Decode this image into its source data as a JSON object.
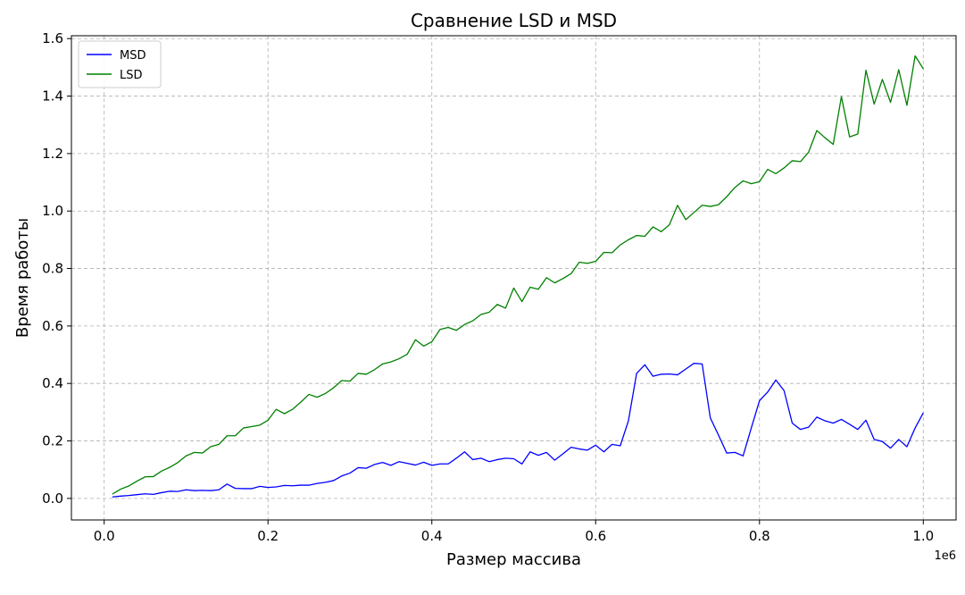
{
  "chart_data": {
    "type": "line",
    "title": "Сравнение LSD и MSD",
    "xlabel": "Размер массива",
    "ylabel": "Время работы",
    "x_offset_label": "1e6",
    "xlim": [
      -0.04,
      1.04
    ],
    "ylim": [
      -0.075,
      1.61
    ],
    "x_ticks": [
      0.0,
      0.2,
      0.4,
      0.6,
      0.8,
      1.0
    ],
    "x_tick_labels": [
      "0.0",
      "0.2",
      "0.4",
      "0.6",
      "0.8",
      "1.0"
    ],
    "y_ticks": [
      0.0,
      0.2,
      0.4,
      0.6,
      0.8,
      1.0,
      1.2,
      1.4,
      1.6
    ],
    "y_tick_labels": [
      "0.0",
      "0.2",
      "0.4",
      "0.6",
      "0.8",
      "1.0",
      "1.2",
      "1.4",
      "1.6"
    ],
    "grid": true,
    "legend_position": "top-left",
    "x": [
      0.01,
      0.02,
      0.03,
      0.04,
      0.05,
      0.06,
      0.07,
      0.08,
      0.09,
      0.1,
      0.11,
      0.12,
      0.13,
      0.14,
      0.15,
      0.16,
      0.17,
      0.18,
      0.19,
      0.2,
      0.21,
      0.22,
      0.23,
      0.24,
      0.25,
      0.26,
      0.27,
      0.28,
      0.29,
      0.3,
      0.31,
      0.32,
      0.33,
      0.34,
      0.35,
      0.36,
      0.37,
      0.38,
      0.39,
      0.4,
      0.41,
      0.42,
      0.43,
      0.44,
      0.45,
      0.46,
      0.47,
      0.48,
      0.49,
      0.5,
      0.51,
      0.52,
      0.53,
      0.54,
      0.55,
      0.56,
      0.57,
      0.58,
      0.59,
      0.6,
      0.61,
      0.62,
      0.63,
      0.64,
      0.65,
      0.66,
      0.67,
      0.68,
      0.69,
      0.7,
      0.71,
      0.72,
      0.73,
      0.74,
      0.75,
      0.76,
      0.77,
      0.78,
      0.79,
      0.8,
      0.81,
      0.82,
      0.83,
      0.84,
      0.85,
      0.86,
      0.87,
      0.88,
      0.89,
      0.9,
      0.91,
      0.92,
      0.93,
      0.94,
      0.95,
      0.96,
      0.97,
      0.98,
      0.99,
      1.0
    ],
    "series": [
      {
        "name": "MSD",
        "color": "#0000ff",
        "values": [
          0.005,
          0.008,
          0.01,
          0.013,
          0.016,
          0.014,
          0.02,
          0.025,
          0.024,
          0.03,
          0.027,
          0.028,
          0.027,
          0.03,
          0.05,
          0.035,
          0.034,
          0.034,
          0.042,
          0.038,
          0.04,
          0.045,
          0.044,
          0.046,
          0.046,
          0.052,
          0.056,
          0.062,
          0.078,
          0.088,
          0.107,
          0.105,
          0.118,
          0.125,
          0.115,
          0.128,
          0.122,
          0.116,
          0.126,
          0.115,
          0.12,
          0.12,
          0.14,
          0.162,
          0.135,
          0.14,
          0.128,
          0.135,
          0.14,
          0.138,
          0.12,
          0.162,
          0.15,
          0.16,
          0.133,
          0.155,
          0.178,
          0.172,
          0.168,
          0.185,
          0.162,
          0.188,
          0.183,
          0.27,
          0.435,
          0.465,
          0.425,
          0.432,
          0.433,
          0.43,
          0.45,
          0.47,
          0.468,
          0.28,
          0.22,
          0.158,
          0.16,
          0.148,
          0.245,
          0.34,
          0.37,
          0.412,
          0.375,
          0.262,
          0.24,
          0.248,
          0.283,
          0.27,
          0.262,
          0.275,
          0.258,
          0.24,
          0.272,
          0.205,
          0.198,
          0.175,
          0.205,
          0.18,
          0.245,
          0.298
        ]
      },
      {
        "name": "LSD",
        "color": "#008000",
        "values": [
          0.015,
          0.032,
          0.043,
          0.06,
          0.075,
          0.076,
          0.095,
          0.108,
          0.125,
          0.148,
          0.16,
          0.158,
          0.18,
          0.188,
          0.218,
          0.218,
          0.245,
          0.25,
          0.255,
          0.272,
          0.31,
          0.295,
          0.31,
          0.335,
          0.362,
          0.352,
          0.365,
          0.385,
          0.41,
          0.408,
          0.435,
          0.432,
          0.448,
          0.468,
          0.475,
          0.486,
          0.502,
          0.552,
          0.53,
          0.545,
          0.588,
          0.595,
          0.585,
          0.605,
          0.618,
          0.64,
          0.648,
          0.675,
          0.662,
          0.732,
          0.685,
          0.735,
          0.728,
          0.768,
          0.75,
          0.765,
          0.782,
          0.822,
          0.818,
          0.825,
          0.856,
          0.855,
          0.882,
          0.9,
          0.915,
          0.912,
          0.945,
          0.928,
          0.952,
          1.02,
          0.97,
          0.995,
          1.02,
          1.016,
          1.022,
          1.05,
          1.082,
          1.105,
          1.095,
          1.102,
          1.145,
          1.13,
          1.15,
          1.175,
          1.172,
          1.205,
          1.28,
          1.255,
          1.232,
          1.398,
          1.258,
          1.268,
          1.49,
          1.372,
          1.458,
          1.378,
          1.492,
          1.368,
          1.54,
          1.495
        ]
      }
    ]
  }
}
